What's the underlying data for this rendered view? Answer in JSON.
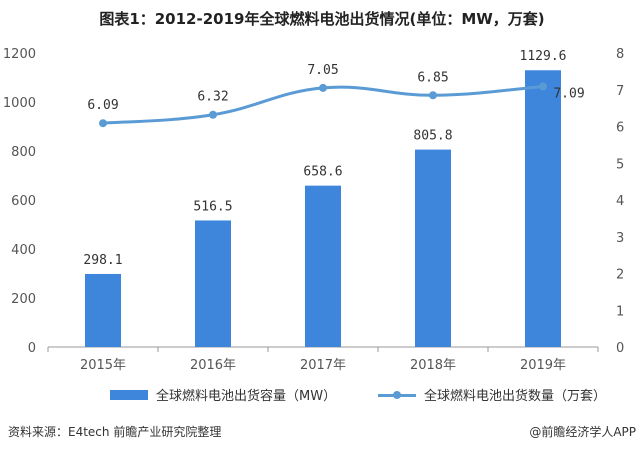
{
  "title": "图表1：2012-2019年全球燃料电池出货情况(单位：MW，万套)",
  "source": "资料来源：E4tech 前瞻产业研究院整理",
  "brand": "@前瞻经济学人APP",
  "colors": {
    "bar": "#3e86dc",
    "line": "#5b9bd5"
  },
  "chart_data": {
    "type": "bar",
    "categories": [
      "2015年",
      "2016年",
      "2017年",
      "2018年",
      "2019年"
    ],
    "series": [
      {
        "name": "全球燃料电池出货容量（MW）",
        "type": "bar",
        "axis": "left",
        "values": [
          298.1,
          516.5,
          658.6,
          805.8,
          1129.6
        ],
        "labels": [
          "298.1",
          "516.5",
          "658.6",
          "805.8",
          "1129.6"
        ]
      },
      {
        "name": "全球燃料电池出货数量（万套）",
        "type": "line",
        "axis": "right",
        "values": [
          6.09,
          6.32,
          7.05,
          6.85,
          7.09
        ],
        "labels": [
          "6.09",
          "6.32",
          "7.05",
          "6.85",
          "7.09"
        ]
      }
    ],
    "y_left": {
      "min": 0,
      "max": 1200,
      "ticks": [
        "0",
        "200",
        "400",
        "600",
        "800",
        "1000",
        "1200"
      ]
    },
    "y_right": {
      "min": 0,
      "max": 8,
      "ticks": [
        "0",
        "1",
        "2",
        "3",
        "4",
        "5",
        "6",
        "7",
        "8"
      ]
    },
    "legend_position": "bottom",
    "grid": false
  }
}
